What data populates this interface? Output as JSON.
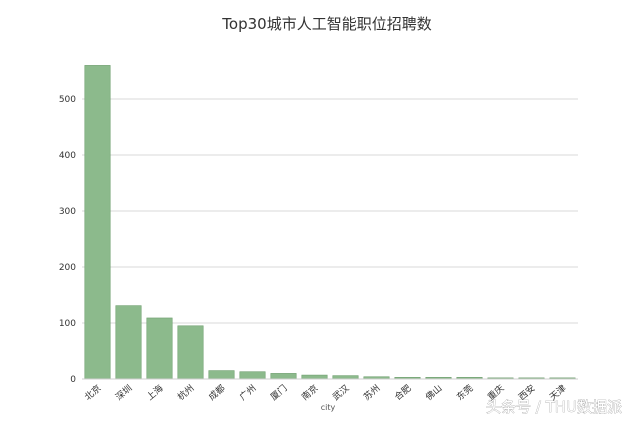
{
  "chart_data": {
    "type": "bar",
    "title": "Top30城市人工智能职位招聘数",
    "xlabel": "city",
    "ylabel": "",
    "categories": [
      "北京",
      "深圳",
      "上海",
      "杭州",
      "成都",
      "广州",
      "厦门",
      "南京",
      "武汉",
      "苏州",
      "合肥",
      "佛山",
      "东莞",
      "重庆",
      "西安",
      "天津"
    ],
    "values": [
      560,
      131,
      109,
      95,
      15,
      13,
      10,
      7,
      6,
      4,
      3,
      3,
      3,
      2,
      2,
      2
    ],
    "ylim": [
      0,
      600
    ],
    "yticks": [
      0,
      100,
      200,
      300,
      400,
      500
    ],
    "grid": true,
    "bar_color": "#8cba8c",
    "bar_edge_color": "#6e9e6e"
  },
  "watermark": "头条号 / THU数据派"
}
